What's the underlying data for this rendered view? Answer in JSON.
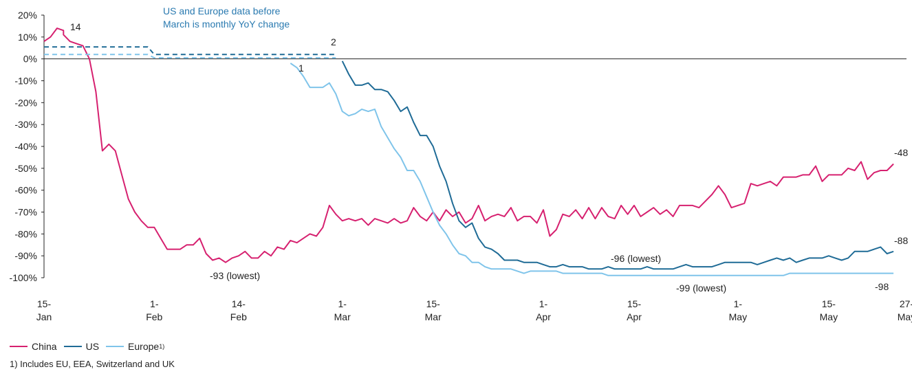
{
  "chart_data": {
    "type": "line",
    "title": "",
    "ylim": [
      -100,
      20
    ],
    "y_ticks": [
      "20%",
      "10%",
      "0%",
      "-10%",
      "-20%",
      "-30%",
      "-40%",
      "-50%",
      "-60%",
      "-70%",
      "-80%",
      "-90%",
      "-100%"
    ],
    "x_ticks": [
      {
        "day": 0,
        "line1": "15-",
        "line2": "Jan"
      },
      {
        "day": 17,
        "line1": "1-",
        "line2": "Feb"
      },
      {
        "day": 30,
        "line1": "14-",
        "line2": "Feb"
      },
      {
        "day": 46,
        "line1": "1-",
        "line2": "Mar"
      },
      {
        "day": 60,
        "line1": "15-",
        "line2": "Mar"
      },
      {
        "day": 77,
        "line1": "1-",
        "line2": "Apr"
      },
      {
        "day": 91,
        "line1": "15-",
        "line2": "Apr"
      },
      {
        "day": 107,
        "line1": "1-",
        "line2": "May"
      },
      {
        "day": 121,
        "line1": "15-",
        "line2": "May"
      },
      {
        "day": 133,
        "line1": "27-",
        "line2": "May"
      }
    ],
    "series": [
      {
        "name": "China",
        "color": "#d6206f",
        "points": [
          [
            0,
            8
          ],
          [
            1,
            10
          ],
          [
            2,
            14
          ],
          [
            3,
            13
          ],
          [
            3,
            11
          ],
          [
            4,
            8
          ],
          [
            5,
            7
          ],
          [
            6,
            6
          ],
          [
            7,
            0
          ],
          [
            8,
            -15
          ],
          [
            9,
            -42
          ],
          [
            10,
            -39
          ],
          [
            11,
            -42
          ],
          [
            12,
            -53
          ],
          [
            13,
            -64
          ],
          [
            14,
            -70
          ],
          [
            15,
            -74
          ],
          [
            16,
            -77
          ],
          [
            17,
            -77
          ],
          [
            18,
            -82
          ],
          [
            19,
            -87
          ],
          [
            20,
            -87
          ],
          [
            21,
            -87
          ],
          [
            22,
            -85
          ],
          [
            23,
            -85
          ],
          [
            24,
            -82
          ],
          [
            25,
            -89
          ],
          [
            26,
            -92
          ],
          [
            27,
            -91
          ],
          [
            28,
            -93
          ],
          [
            29,
            -91
          ],
          [
            30,
            -90
          ],
          [
            31,
            -88
          ],
          [
            32,
            -91
          ],
          [
            33,
            -91
          ],
          [
            34,
            -88
          ],
          [
            35,
            -90
          ],
          [
            36,
            -86
          ],
          [
            37,
            -87
          ],
          [
            38,
            -83
          ],
          [
            39,
            -84
          ],
          [
            40,
            -82
          ],
          [
            41,
            -80
          ],
          [
            42,
            -81
          ],
          [
            43,
            -77
          ],
          [
            44,
            -67
          ],
          [
            45,
            -71
          ],
          [
            46,
            -74
          ],
          [
            47,
            -73
          ],
          [
            48,
            -74
          ],
          [
            49,
            -73
          ],
          [
            50,
            -76
          ],
          [
            51,
            -73
          ],
          [
            52,
            -74
          ],
          [
            53,
            -75
          ],
          [
            54,
            -73
          ],
          [
            55,
            -75
          ],
          [
            56,
            -74
          ],
          [
            57,
            -68
          ],
          [
            58,
            -72
          ],
          [
            59,
            -74
          ],
          [
            60,
            -70
          ],
          [
            61,
            -74
          ],
          [
            62,
            -69
          ],
          [
            63,
            -72
          ],
          [
            64,
            -70
          ],
          [
            65,
            -75
          ],
          [
            66,
            -73
          ],
          [
            67,
            -67
          ],
          [
            68,
            -74
          ],
          [
            69,
            -72
          ],
          [
            70,
            -71
          ],
          [
            71,
            -72
          ],
          [
            72,
            -68
          ],
          [
            73,
            -74
          ],
          [
            74,
            -72
          ],
          [
            75,
            -72
          ],
          [
            76,
            -75
          ],
          [
            77,
            -69
          ],
          [
            78,
            -81
          ],
          [
            79,
            -78
          ],
          [
            80,
            -71
          ],
          [
            81,
            -72
          ],
          [
            82,
            -69
          ],
          [
            83,
            -73
          ],
          [
            84,
            -68
          ],
          [
            85,
            -73
          ],
          [
            86,
            -68
          ],
          [
            87,
            -72
          ],
          [
            88,
            -73
          ],
          [
            89,
            -67
          ],
          [
            90,
            -71
          ],
          [
            91,
            -67
          ],
          [
            92,
            -72
          ],
          [
            93,
            -70
          ],
          [
            94,
            -68
          ],
          [
            95,
            -71
          ],
          [
            96,
            -69
          ],
          [
            97,
            -72
          ],
          [
            98,
            -67
          ],
          [
            99,
            -67
          ],
          [
            100,
            -67
          ],
          [
            101,
            -68
          ],
          [
            102,
            -65
          ],
          [
            103,
            -62
          ],
          [
            104,
            -58
          ],
          [
            105,
            -62
          ],
          [
            106,
            -68
          ],
          [
            107,
            -67
          ],
          [
            108,
            -66
          ],
          [
            109,
            -57
          ],
          [
            110,
            -58
          ],
          [
            111,
            -57
          ],
          [
            112,
            -56
          ],
          [
            113,
            -58
          ],
          [
            114,
            -54
          ],
          [
            115,
            -54
          ],
          [
            116,
            -54
          ],
          [
            117,
            -53
          ],
          [
            118,
            -53
          ],
          [
            119,
            -49
          ],
          [
            120,
            -56
          ],
          [
            121,
            -53
          ],
          [
            122,
            -53
          ],
          [
            123,
            -53
          ],
          [
            124,
            -50
          ],
          [
            125,
            -51
          ],
          [
            126,
            -47
          ],
          [
            127,
            -55
          ],
          [
            128,
            -52
          ],
          [
            129,
            -51
          ],
          [
            130,
            -51
          ],
          [
            131,
            -48
          ]
        ]
      },
      {
        "name": "US",
        "color": "#1f6b96",
        "points": [
          [
            0,
            5.5
          ],
          [
            16,
            5.5
          ],
          [
            17,
            2
          ],
          [
            45,
            2
          ],
          [
            46,
            -1
          ],
          [
            47,
            -7
          ],
          [
            48,
            -12
          ],
          [
            49,
            -12
          ],
          [
            50,
            -11
          ],
          [
            51,
            -14
          ],
          [
            52,
            -14
          ],
          [
            53,
            -15
          ],
          [
            54,
            -19
          ],
          [
            55,
            -24
          ],
          [
            56,
            -22
          ],
          [
            57,
            -29
          ],
          [
            58,
            -35
          ],
          [
            59,
            -35
          ],
          [
            60,
            -40
          ],
          [
            61,
            -49
          ],
          [
            62,
            -56
          ],
          [
            63,
            -66
          ],
          [
            64,
            -74
          ],
          [
            65,
            -77
          ],
          [
            66,
            -75
          ],
          [
            67,
            -82
          ],
          [
            68,
            -86
          ],
          [
            69,
            -87
          ],
          [
            70,
            -89
          ],
          [
            71,
            -92
          ],
          [
            72,
            -92
          ],
          [
            73,
            -92
          ],
          [
            74,
            -93
          ],
          [
            75,
            -93
          ],
          [
            76,
            -93
          ],
          [
            77,
            -94
          ],
          [
            78,
            -95
          ],
          [
            79,
            -95
          ],
          [
            80,
            -94
          ],
          [
            81,
            -95
          ],
          [
            82,
            -95
          ],
          [
            83,
            -95
          ],
          [
            84,
            -96
          ],
          [
            85,
            -96
          ],
          [
            86,
            -96
          ],
          [
            87,
            -95
          ],
          [
            88,
            -96
          ],
          [
            89,
            -96
          ],
          [
            90,
            -96
          ],
          [
            91,
            -96
          ],
          [
            92,
            -96
          ],
          [
            93,
            -95
          ],
          [
            94,
            -96
          ],
          [
            95,
            -96
          ],
          [
            96,
            -96
          ],
          [
            97,
            -96
          ],
          [
            98,
            -95
          ],
          [
            99,
            -94
          ],
          [
            100,
            -95
          ],
          [
            101,
            -95
          ],
          [
            102,
            -95
          ],
          [
            103,
            -95
          ],
          [
            104,
            -94
          ],
          [
            105,
            -93
          ],
          [
            106,
            -93
          ],
          [
            107,
            -93
          ],
          [
            108,
            -93
          ],
          [
            109,
            -93
          ],
          [
            110,
            -94
          ],
          [
            111,
            -93
          ],
          [
            112,
            -92
          ],
          [
            113,
            -91
          ],
          [
            114,
            -92
          ],
          [
            115,
            -91
          ],
          [
            116,
            -93
          ],
          [
            117,
            -92
          ],
          [
            118,
            -91
          ],
          [
            119,
            -91
          ],
          [
            120,
            -91
          ],
          [
            121,
            -90
          ],
          [
            122,
            -91
          ],
          [
            123,
            -92
          ],
          [
            124,
            -91
          ],
          [
            125,
            -88
          ],
          [
            126,
            -88
          ],
          [
            127,
            -88
          ],
          [
            128,
            -87
          ],
          [
            129,
            -86
          ],
          [
            130,
            -89
          ],
          [
            131,
            -88
          ]
        ]
      },
      {
        "name": "Europe",
        "name_sup": "1)",
        "color": "#7fc4ea",
        "points": [
          [
            0,
            2
          ],
          [
            16,
            2
          ],
          [
            17,
            0.5
          ],
          [
            45,
            0.5
          ],
          [
            38,
            -2
          ],
          [
            39,
            -4
          ],
          [
            40,
            -8
          ],
          [
            41,
            -13
          ],
          [
            42,
            -13
          ],
          [
            43,
            -13
          ],
          [
            44,
            -11
          ],
          [
            45,
            -16
          ],
          [
            46,
            -24
          ],
          [
            47,
            -26
          ],
          [
            48,
            -25
          ],
          [
            49,
            -23
          ],
          [
            50,
            -24
          ],
          [
            51,
            -23
          ],
          [
            52,
            -31
          ],
          [
            53,
            -36
          ],
          [
            54,
            -41
          ],
          [
            55,
            -45
          ],
          [
            56,
            -51
          ],
          [
            57,
            -51
          ],
          [
            58,
            -56
          ],
          [
            59,
            -63
          ],
          [
            60,
            -70
          ],
          [
            61,
            -76
          ],
          [
            62,
            -80
          ],
          [
            63,
            -85
          ],
          [
            64,
            -89
          ],
          [
            65,
            -90
          ],
          [
            66,
            -93
          ],
          [
            67,
            -93
          ],
          [
            68,
            -95
          ],
          [
            69,
            -96
          ],
          [
            70,
            -96
          ],
          [
            71,
            -96
          ],
          [
            72,
            -96
          ],
          [
            73,
            -97
          ],
          [
            74,
            -98
          ],
          [
            75,
            -97
          ],
          [
            76,
            -97
          ],
          [
            77,
            -97
          ],
          [
            78,
            -97
          ],
          [
            79,
            -97
          ],
          [
            80,
            -98
          ],
          [
            81,
            -98
          ],
          [
            82,
            -98
          ],
          [
            83,
            -98
          ],
          [
            84,
            -98
          ],
          [
            85,
            -98
          ],
          [
            86,
            -98
          ],
          [
            87,
            -99
          ],
          [
            88,
            -99
          ],
          [
            89,
            -99
          ],
          [
            90,
            -99
          ],
          [
            95,
            -99
          ],
          [
            100,
            -99
          ],
          [
            105,
            -99
          ],
          [
            110,
            -99
          ],
          [
            114,
            -99
          ],
          [
            115,
            -98
          ],
          [
            120,
            -98
          ],
          [
            125,
            -98
          ],
          [
            131,
            -98
          ]
        ]
      }
    ],
    "annotations": {
      "china_peak": "14",
      "us_pre": "2",
      "eu_pre": "1",
      "china_low": "-93 (lowest)",
      "us_low": "-96 (lowest)",
      "eu_low": "-99 (lowest)",
      "china_end": "-48",
      "us_end": "-88",
      "eu_end": "-98",
      "note_line1": "US and Europe data before",
      "note_line2": "March is monthly YoY change"
    },
    "legend_position": "bottom-left",
    "grid": false
  },
  "legend": {
    "china": "China",
    "us": "US",
    "europe": "Europe",
    "europe_sup": "1)"
  },
  "footnote": "1) Includes EU, EEA, Switzerland and UK"
}
